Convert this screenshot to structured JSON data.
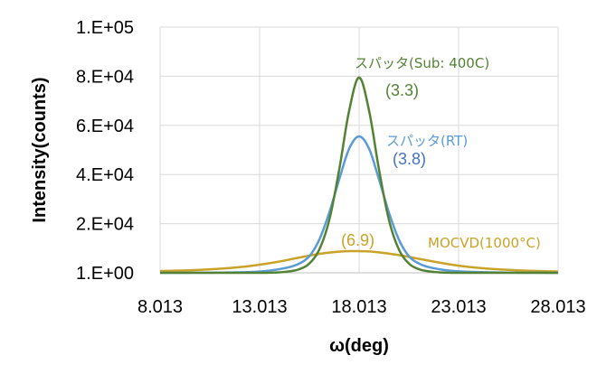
{
  "chart_data": {
    "type": "line",
    "title": "",
    "xlabel": "ω(deg)",
    "ylabel": "Intensity(counts)",
    "xlim": [
      8.013,
      28.013
    ],
    "ylim": [
      0,
      100000
    ],
    "x_ticks": [
      8.013,
      13.013,
      18.013,
      23.013,
      28.013
    ],
    "x_tick_labels": [
      "8.013",
      "13.013",
      "18.013",
      "23.013",
      "28.013"
    ],
    "y_ticks": [
      0,
      20000,
      40000,
      60000,
      80000,
      100000
    ],
    "y_tick_labels": [
      "1.E+00",
      "2.E+04",
      "4.E+04",
      "6.E+04",
      "8.E+04",
      "1.E+05"
    ],
    "grid": {
      "x": true,
      "y": true
    },
    "series": [
      {
        "name": "MOCVD(1000°C)",
        "color": "#c9a227",
        "fwhm_label": "(6.9)",
        "x": [
          8.013,
          10.013,
          12.013,
          13.013,
          14.013,
          15.013,
          16.013,
          17.013,
          17.513,
          18.013,
          18.513,
          19.013,
          20.013,
          21.013,
          22.013,
          23.013,
          24.013,
          26.013,
          28.013
        ],
        "y": [
          700,
          1200,
          2300,
          3300,
          4600,
          6200,
          7700,
          8600,
          8800,
          8800,
          8700,
          8300,
          7200,
          5700,
          4200,
          2900,
          2000,
          1000,
          500
        ]
      },
      {
        "name": "スパッタ(RT)",
        "color": "#5b9bd5",
        "fwhm_label": "(3.8)",
        "x": [
          8.013,
          12.013,
          14.013,
          15.013,
          15.513,
          16.013,
          16.513,
          17.013,
          17.513,
          18.013,
          18.513,
          19.013,
          19.513,
          20.013,
          20.513,
          21.013,
          22.013,
          24.013,
          28.013
        ],
        "y": [
          0,
          200,
          1500,
          3800,
          6800,
          13500,
          24500,
          38000,
          50500,
          55500,
          50500,
          38000,
          24500,
          13500,
          6800,
          3800,
          1500,
          300,
          0
        ]
      },
      {
        "name": "スパッタ(Sub: 400C)",
        "color": "#548235",
        "fwhm_label": "(3.3)",
        "x": [
          8.013,
          13.013,
          14.513,
          15.013,
          15.513,
          16.013,
          16.513,
          17.013,
          17.513,
          18.013,
          18.513,
          19.013,
          19.513,
          20.013,
          20.513,
          21.013,
          21.513,
          23.013,
          28.013
        ],
        "y": [
          0,
          0,
          600,
          1500,
          3800,
          9500,
          21500,
          42000,
          66000,
          79500,
          66000,
          42000,
          21500,
          9500,
          3800,
          1500,
          600,
          0,
          0
        ]
      }
    ]
  }
}
